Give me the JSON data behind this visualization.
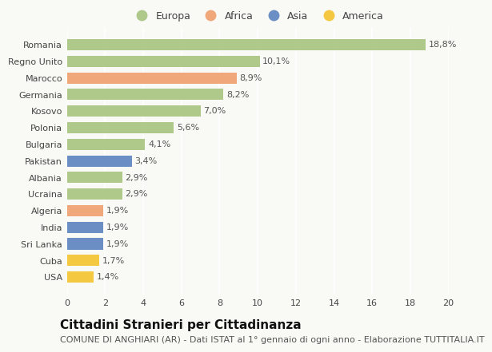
{
  "countries": [
    "Romania",
    "Regno Unito",
    "Marocco",
    "Germania",
    "Kosovo",
    "Polonia",
    "Bulgaria",
    "Pakistan",
    "Albania",
    "Ucraina",
    "Algeria",
    "India",
    "Sri Lanka",
    "Cuba",
    "USA"
  ],
  "values": [
    18.8,
    10.1,
    8.9,
    8.2,
    7.0,
    5.6,
    4.1,
    3.4,
    2.9,
    2.9,
    1.9,
    1.9,
    1.9,
    1.7,
    1.4
  ],
  "labels": [
    "18,8%",
    "10,1%",
    "8,9%",
    "8,2%",
    "7,0%",
    "5,6%",
    "4,1%",
    "3,4%",
    "2,9%",
    "2,9%",
    "1,9%",
    "1,9%",
    "1,9%",
    "1,7%",
    "1,4%"
  ],
  "colors": [
    "#aec98a",
    "#aec98a",
    "#f0a87a",
    "#aec98a",
    "#aec98a",
    "#aec98a",
    "#aec98a",
    "#6b8fc4",
    "#aec98a",
    "#aec98a",
    "#f0a87a",
    "#6b8fc4",
    "#6b8fc4",
    "#f5c842",
    "#f5c842"
  ],
  "legend_labels": [
    "Europa",
    "Africa",
    "Asia",
    "America"
  ],
  "legend_colors": [
    "#aec98a",
    "#f0a87a",
    "#6b8fc4",
    "#f5c842"
  ],
  "xlim": [
    0,
    20
  ],
  "xticks": [
    0,
    2,
    4,
    6,
    8,
    10,
    12,
    14,
    16,
    18,
    20
  ],
  "title": "Cittadini Stranieri per Cittadinanza",
  "subtitle": "COMUNE DI ANGHIARI (AR) - Dati ISTAT al 1° gennaio di ogni anno - Elaborazione TUTTITALIA.IT",
  "background_color": "#f9f9f6",
  "bar_height": 0.68,
  "title_fontsize": 11,
  "subtitle_fontsize": 8,
  "label_fontsize": 8,
  "tick_fontsize": 8,
  "legend_fontsize": 9
}
